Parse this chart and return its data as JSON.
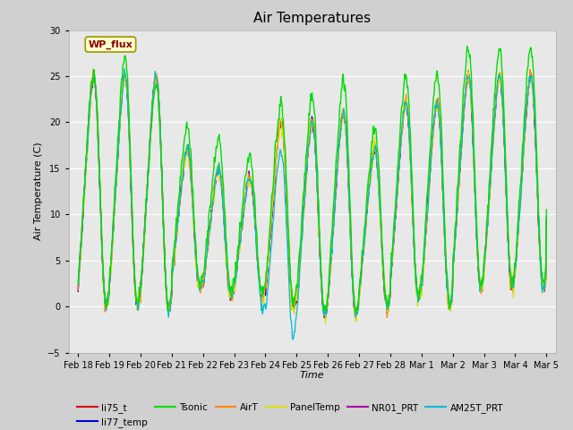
{
  "title": "Air Temperatures",
  "xlabel": "Time",
  "ylabel": "Air Temperature (C)",
  "ylim": [
    -5,
    30
  ],
  "yticks": [
    -5,
    0,
    5,
    10,
    15,
    20,
    25,
    30
  ],
  "x_tick_labels": [
    "Feb 18",
    "Feb 19",
    "Feb 20",
    "Feb 21",
    "Feb 22",
    "Feb 23",
    "Feb 24",
    "Feb 25",
    "Feb 26",
    "Feb 27",
    "Feb 28",
    "Mar 1",
    "Mar 2",
    "Mar 3",
    "Mar 4",
    "Mar 5"
  ],
  "x_tick_positions": [
    0,
    1,
    2,
    3,
    4,
    5,
    6,
    7,
    8,
    9,
    10,
    11,
    12,
    13,
    14,
    15
  ],
  "fig_bg_color": "#d0d0d0",
  "plot_bg_color": "#e8e8e8",
  "colors": {
    "li75_t": "#dd0000",
    "li77_temp": "#0000dd",
    "Tsonic": "#00dd00",
    "AirT": "#ff8800",
    "PanelTemp": "#dddd00",
    "NR01_PRT": "#aa00aa",
    "AM25T_PRT": "#00bbcc"
  },
  "legend_items": [
    {
      "label": "li75_t",
      "color": "#dd0000"
    },
    {
      "label": "li77_temp",
      "color": "#0000dd"
    },
    {
      "label": "Tsonic",
      "color": "#00dd00"
    },
    {
      "label": "AirT",
      "color": "#ff8800"
    },
    {
      "label": "PanelTemp",
      "color": "#dddd00"
    },
    {
      "label": "NR01_PRT",
      "color": "#aa00aa"
    },
    {
      "label": "AM25T_PRT",
      "color": "#00bbcc"
    }
  ],
  "wp_flux_box": {
    "text": "WP_flux",
    "text_color": "#8b0000",
    "bg_color": "#ffffcc",
    "edge_color": "#999900"
  },
  "grid_color": "#ffffff",
  "n_points_per_day": 48,
  "n_days": 16
}
